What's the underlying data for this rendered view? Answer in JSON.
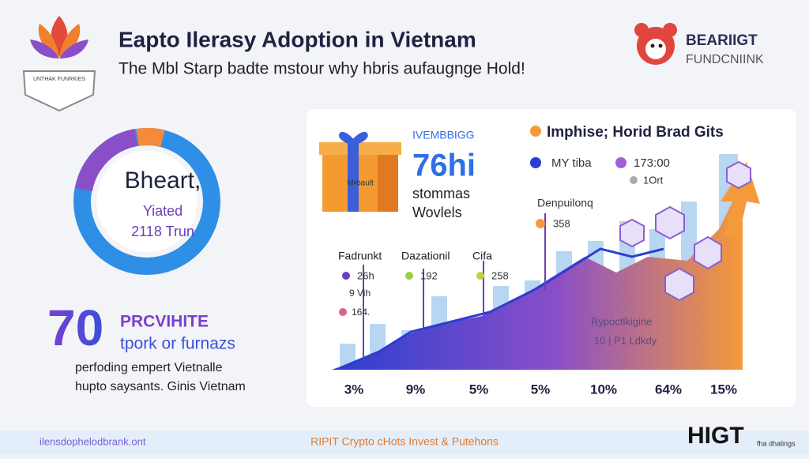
{
  "header": {
    "logo_text": "UNTHAK FUNRKIES",
    "title": "Eapto Ilerasy Adoption in Vietnam",
    "subtitle": "The Mbl Starp badte mstour why hbris aufaugnge Hold!",
    "brand_line1": "BEARIIGT",
    "brand_line2": "FUNDCNIINK"
  },
  "donut": {
    "line1": "Bheart,",
    "line2": "Yiated",
    "line3": "2118 Trun"
  },
  "stat": {
    "number": "70",
    "line1": "PRCVIHITE",
    "line2": "tpork or furnazs",
    "desc1": "perfoding empert Vietnalle",
    "desc2": "hupto saysants. Ginis Vietnam"
  },
  "panel": {
    "box_label": "M•bault",
    "kicker": "IVEMBBIGG",
    "big": "76hi",
    "sub1": "stommas",
    "sub2": "Wovlels",
    "legend_title": "Imphise; Horid Brad Gits",
    "legend_a": "MY tiba",
    "legend_b": "173:00",
    "legend_c": "1Ort",
    "callout_title": "Denpuilonq",
    "callout_value": "358",
    "labels": [
      {
        "name": "Fadrunkt",
        "value": "26h"
      },
      {
        "name": "Dazationil",
        "value": "192"
      },
      {
        "name": "Cifa",
        "value": "258"
      }
    ],
    "small1": "9 Vih",
    "small2": "164.",
    "area_label1": "Rypoctlkigine",
    "area_label2": "10 | P1 Ldkdy",
    "percents": [
      "3%",
      "9%",
      "5%",
      "5%",
      "10%",
      "64%",
      "15%"
    ]
  },
  "footer": {
    "left": "ilensdophelodbrank.ont",
    "center": "RIPIT Crypto cHots Invest & Putehons",
    "brand": "HIGT",
    "brand_sub": "fha dhalings"
  }
}
